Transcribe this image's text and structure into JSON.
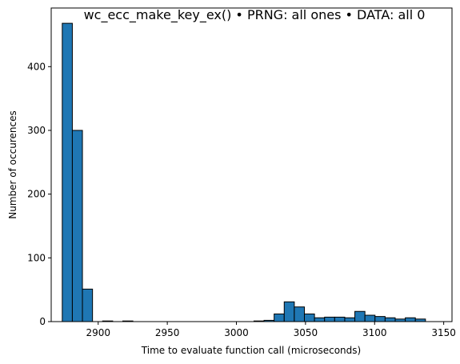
{
  "chart_data": {
    "type": "bar",
    "title": "wc_ecc_make_key_ex() • PRNG: all ones • DATA: all 0",
    "xlabel": "Time to evaluate function call (microseconds)",
    "ylabel": "Number of occurences",
    "xlim": [
      2866,
      3156
    ],
    "ylim": [
      0,
      492
    ],
    "xticks": [
      2900,
      2950,
      3000,
      3050,
      3100,
      3150
    ],
    "yticks": [
      0,
      100,
      200,
      300,
      400
    ],
    "grid": false,
    "bar_color": "#1f77b4",
    "edge_color": "#000000",
    "bin_start": 2874,
    "bin_width": 7.3,
    "values": [
      468,
      300,
      51,
      0,
      1,
      0,
      1,
      0,
      0,
      0,
      0,
      0,
      0,
      0,
      0,
      0,
      0,
      0,
      0,
      1,
      2,
      12,
      31,
      23,
      12,
      6,
      7,
      7,
      6,
      16,
      10,
      8,
      6,
      4,
      6,
      4
    ]
  }
}
